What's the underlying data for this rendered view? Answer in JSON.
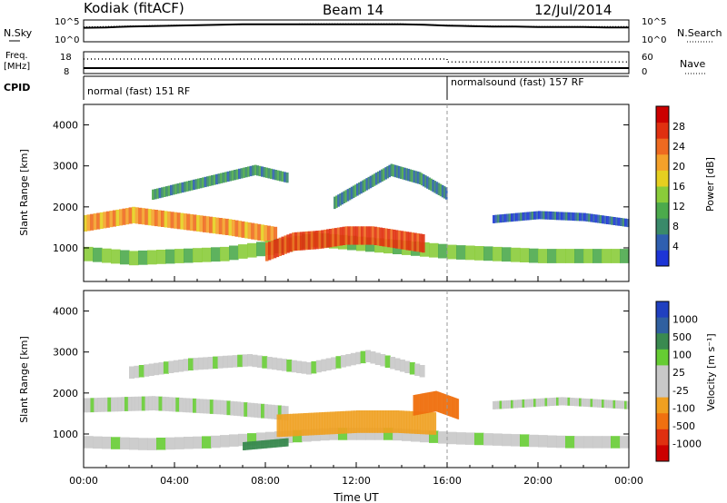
{
  "header": {
    "station": "Kodiak (fitACF)",
    "beam": "Beam 14",
    "date": "12/Jul/2014"
  },
  "colors": {
    "power_scale": [
      "#1d35d6",
      "#2f5fb0",
      "#3a8a6a",
      "#4caa4c",
      "#8acc3a",
      "#e6cf20",
      "#f4a12a",
      "#ee6a20",
      "#e03010",
      "#cc0000"
    ],
    "velocity_scale": [
      "#2040c0",
      "#3060a0",
      "#3a8a50",
      "#66cc33",
      "#c8c8c8",
      "#c8c8c8",
      "#f0a020",
      "#f07010",
      "#e03010",
      "#cc0000"
    ]
  },
  "chart_data": [
    {
      "type": "line",
      "panel": "noise",
      "labels_left": [
        "N.Sky"
      ],
      "labels_right": [
        "N.Search"
      ],
      "yticks_left": [
        "10^5",
        "10^0"
      ],
      "yticks_right": [
        "10^5",
        "10^0"
      ],
      "x_range": [
        "00:00",
        "24:00"
      ],
      "series": [
        {
          "name": "N.Sky",
          "style": "solid",
          "x": [
            0,
            1,
            2,
            3,
            4,
            5,
            6,
            7,
            8,
            9,
            10,
            11,
            12,
            13,
            14,
            15,
            16,
            17,
            18,
            19,
            20,
            21,
            22,
            23,
            24
          ],
          "y": [
            3.2,
            3.3,
            3.5,
            3.6,
            3.7,
            3.8,
            3.9,
            4.0,
            4.0,
            4.0,
            4.0,
            4.0,
            4.0,
            4.0,
            4.0,
            3.9,
            3.7,
            3.6,
            3.5,
            3.5,
            3.4,
            3.4,
            3.4,
            3.3,
            3.3
          ]
        },
        {
          "name": "N.Search",
          "style": "dotted",
          "x": [
            0,
            2,
            4,
            6,
            8,
            10,
            12,
            14,
            16,
            18,
            20,
            22,
            24
          ],
          "y": [
            3.4,
            3.6,
            3.8,
            3.9,
            4.0,
            4.1,
            4.1,
            4.1,
            3.8,
            3.6,
            3.5,
            3.5,
            3.5
          ]
        }
      ]
    },
    {
      "type": "line",
      "panel": "frequency",
      "labels_left": [
        "Freq.",
        "[MHz]"
      ],
      "labels_right": [
        "Nave"
      ],
      "yticks_left": [
        "18",
        "8"
      ],
      "yticks_right": [
        "60",
        "0"
      ],
      "series": [
        {
          "name": "Freq.",
          "style": "solid",
          "x": [
            0,
            24
          ],
          "y": [
            10.5,
            10.5
          ]
        },
        {
          "name": "Nave",
          "style": "dotted",
          "x": [
            0,
            16,
            16,
            24
          ],
          "y": [
            40,
            40,
            32,
            32
          ]
        }
      ]
    },
    {
      "type": "table",
      "panel": "cpid",
      "label": "CPID",
      "segments": [
        {
          "start": "00:00",
          "label": "normal (fast) 151 RF"
        },
        {
          "start": "16:00",
          "label": "normalsound (fast) 157 RF"
        }
      ]
    },
    {
      "type": "heatmap",
      "panel": "power",
      "ylabel": "Slant Range [km]",
      "yticks": [
        1000,
        2000,
        3000,
        4000
      ],
      "ylim": [
        180,
        4500
      ],
      "colorbar_label": "Power [dB]",
      "colorbar_ticks": [
        4,
        8,
        12,
        16,
        20,
        24,
        28
      ],
      "bands": [
        {
          "x0": 0,
          "x1": 8.5,
          "r_mid": [
            1600,
            1800,
            1650,
            1500,
            1300
          ],
          "width": 400,
          "value": 22
        },
        {
          "x0": 0,
          "x1": 24,
          "r_mid": [
            850,
            750,
            800,
            850,
            1000,
            1200,
            1100,
            1000,
            900,
            850,
            800,
            800,
            800
          ],
          "width": 350,
          "value": 14
        },
        {
          "x0": 8,
          "x1": 15,
          "r_mid": [
            900,
            1150,
            1200,
            1300,
            1300,
            1200,
            1100
          ],
          "width": 450,
          "value": 26
        },
        {
          "x0": 3,
          "x1": 9,
          "r_mid": [
            2300,
            2500,
            2700,
            2900,
            2700
          ],
          "width": 250,
          "value": 10
        },
        {
          "x0": 11,
          "x1": 16,
          "r_mid": [
            2100,
            2500,
            2900,
            2700,
            2300
          ],
          "width": 300,
          "value": 9
        },
        {
          "x0": 18,
          "x1": 24,
          "r_mid": [
            1700,
            1800,
            1750,
            1600
          ],
          "width": 200,
          "value": 6
        }
      ]
    },
    {
      "type": "heatmap",
      "panel": "velocity",
      "ylabel": "Slant Range [km]",
      "yticks": [
        1000,
        2000,
        3000,
        4000
      ],
      "ylim": [
        180,
        4500
      ],
      "xlabel": "Time UT",
      "xticks": [
        "00:00",
        "04:00",
        "08:00",
        "12:00",
        "16:00",
        "20:00",
        "00:00"
      ],
      "colorbar_label": "Velocity [m s⁻¹]",
      "colorbar_ticks": [
        "1000",
        "500",
        "100",
        "25",
        "-25",
        "-100",
        "-500",
        "-1000"
      ],
      "bands": [
        {
          "x0": 0,
          "x1": 9,
          "r_mid": [
            1700,
            1750,
            1650,
            1500
          ],
          "width": 350,
          "value": 0
        },
        {
          "x0": 0,
          "x1": 24,
          "r_mid": [
            800,
            750,
            800,
            900,
            1000,
            1000,
            900,
            850,
            800,
            800
          ],
          "width": 300,
          "value": 0
        },
        {
          "x0": 8.5,
          "x1": 15.5,
          "r_mid": [
            1200,
            1250,
            1300,
            1300,
            1250
          ],
          "width": 550,
          "value": -200
        },
        {
          "x0": 14.5,
          "x1": 16.5,
          "r_mid": [
            1700,
            1800,
            1600
          ],
          "width": 500,
          "value": -800
        },
        {
          "x0": 7,
          "x1": 9,
          "r_mid": [
            700,
            800
          ],
          "width": 200,
          "value": 300
        },
        {
          "x0": 2,
          "x1": 15,
          "r_mid": [
            2500,
            2700,
            2800,
            2600,
            2900,
            2500
          ],
          "width": 300,
          "value": 0
        },
        {
          "x0": 18,
          "x1": 24,
          "r_mid": [
            1700,
            1800,
            1700
          ],
          "width": 200,
          "value": 0
        }
      ]
    }
  ]
}
